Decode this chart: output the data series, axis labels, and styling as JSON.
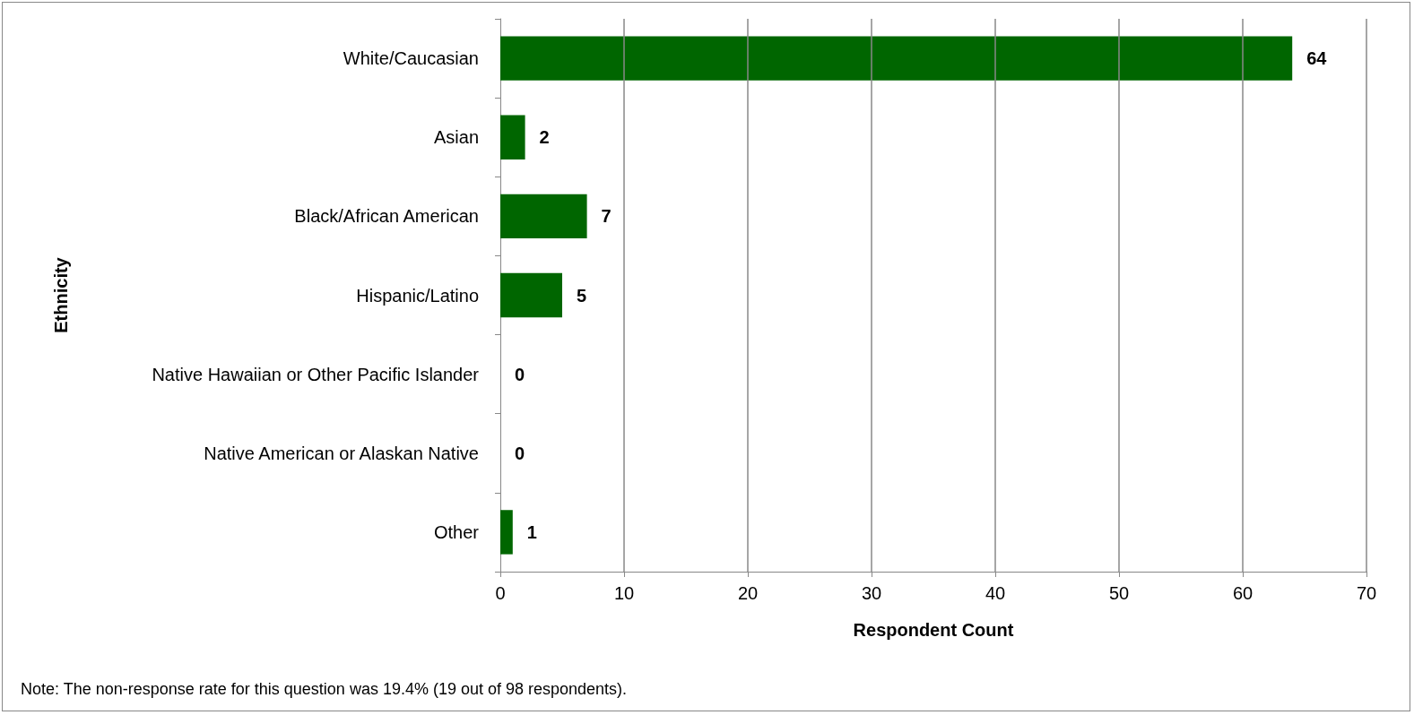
{
  "chart_data": {
    "type": "bar",
    "orientation": "horizontal",
    "categories": [
      "White/Caucasian",
      "Asian",
      "Black/African American",
      "Hispanic/Latino",
      "Native Hawaiian or Other Pacific Islander",
      "Native American or Alaskan Native",
      "Other"
    ],
    "values": [
      64,
      2,
      7,
      5,
      0,
      0,
      1
    ],
    "color": "#006600",
    "xlabel": "Respondent Count",
    "ylabel": "Ethnicity",
    "xlim": [
      0,
      70
    ],
    "xticks": [
      0,
      10,
      20,
      30,
      40,
      50,
      60,
      70
    ],
    "grid": "x",
    "data_labels": true,
    "annotations": [
      "Note: The non-response rate for this question was 19.4% (19 out of 98 respondents)."
    ]
  }
}
